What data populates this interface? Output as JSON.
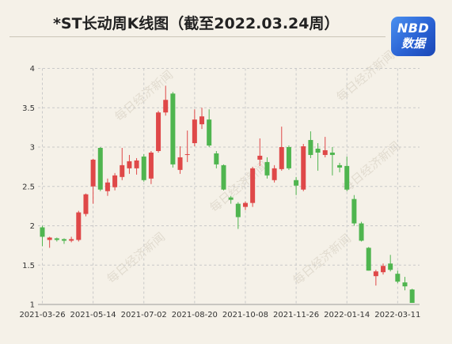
{
  "logo": {
    "line1": "NBD",
    "line2": "数据"
  },
  "watermark": "每日经济新闻",
  "colors": {
    "background": "#f5f1e8",
    "up": "#df4848",
    "down": "#4fb54f",
    "logo": "#2a62d4",
    "grid": "#c9c9c9"
  },
  "chart_data": {
    "type": "candlestick",
    "title": "*ST长动周K线图（截至2022.03.24周）",
    "ylim": [
      1,
      4
    ],
    "y_ticks": [
      1,
      1.5,
      2,
      2.5,
      3,
      3.5,
      4
    ],
    "x_ticks": [
      "2021-03-26",
      "2021-05-14",
      "2021-07-02",
      "2021-08-20",
      "2021-10-08",
      "2021-11-26",
      "2022-01-14",
      "2022-03-11"
    ],
    "grid": true,
    "x": [
      "2021-03-26",
      "2021-04-02",
      "2021-04-09",
      "2021-04-16",
      "2021-04-23",
      "2021-04-30",
      "2021-05-07",
      "2021-05-14",
      "2021-05-21",
      "2021-05-28",
      "2021-06-04",
      "2021-06-11",
      "2021-06-18",
      "2021-06-25",
      "2021-07-02",
      "2021-07-09",
      "2021-07-16",
      "2021-07-23",
      "2021-07-30",
      "2021-08-06",
      "2021-08-13",
      "2021-08-20",
      "2021-08-27",
      "2021-09-03",
      "2021-09-10",
      "2021-09-17",
      "2021-09-24",
      "2021-09-30",
      "2021-10-08",
      "2021-10-15",
      "2021-10-22",
      "2021-10-29",
      "2021-11-05",
      "2021-11-12",
      "2021-11-19",
      "2021-11-26",
      "2021-12-03",
      "2021-12-10",
      "2021-12-17",
      "2021-12-24",
      "2021-12-31",
      "2022-01-07",
      "2022-01-14",
      "2022-01-21",
      "2022-01-28",
      "2022-02-11",
      "2022-02-18",
      "2022-02-25",
      "2022-03-04",
      "2022-03-11",
      "2022-03-18",
      "2022-03-24"
    ],
    "open": [
      1.98,
      1.82,
      1.84,
      1.83,
      1.81,
      1.82,
      2.15,
      2.5,
      2.99,
      2.44,
      2.49,
      2.62,
      2.73,
      2.73,
      2.88,
      2.6,
      2.95,
      3.44,
      3.68,
      2.71,
      2.9,
      3.05,
      3.29,
      3.35,
      2.92,
      2.77,
      2.36,
      2.28,
      2.24,
      2.29,
      2.84,
      2.81,
      2.58,
      2.72,
      3.0,
      2.58,
      2.46,
      3.09,
      2.98,
      2.9,
      2.93,
      2.77,
      2.76,
      2.34,
      2.03,
      1.72,
      1.36,
      1.41,
      1.52,
      1.39,
      1.28,
      1.19
    ],
    "high": [
      2.0,
      1.86,
      1.85,
      1.84,
      1.86,
      2.19,
      2.41,
      2.85,
      3.0,
      2.6,
      2.67,
      2.99,
      2.9,
      2.86,
      2.91,
      2.95,
      3.46,
      3.78,
      3.7,
      3.01,
      3.21,
      3.48,
      3.5,
      3.48,
      2.95,
      2.78,
      2.38,
      2.3,
      2.31,
      2.75,
      3.11,
      2.87,
      2.77,
      3.26,
      3.02,
      2.62,
      3.04,
      3.2,
      3.05,
      3.13,
      3.0,
      2.8,
      2.88,
      2.39,
      2.05,
      1.73,
      1.44,
      1.52,
      1.63,
      1.43,
      1.35,
      1.2
    ],
    "low": [
      1.74,
      1.72,
      1.8,
      1.77,
      1.79,
      1.8,
      2.12,
      2.28,
      2.44,
      2.38,
      2.45,
      2.58,
      2.66,
      2.65,
      2.56,
      2.53,
      2.93,
      3.4,
      2.74,
      2.66,
      2.81,
      3.01,
      3.23,
      3.0,
      2.73,
      2.45,
      2.28,
      1.96,
      2.2,
      2.24,
      2.76,
      2.6,
      2.55,
      2.7,
      2.71,
      2.39,
      2.44,
      2.86,
      2.7,
      2.87,
      2.64,
      2.68,
      2.44,
      2.0,
      1.8,
      1.43,
      1.24,
      1.38,
      1.42,
      1.27,
      1.18,
      1.02
    ],
    "close": [
      1.86,
      1.85,
      1.82,
      1.81,
      1.83,
      2.17,
      2.4,
      2.84,
      2.46,
      2.55,
      2.64,
      2.77,
      2.82,
      2.83,
      2.58,
      2.93,
      3.44,
      3.6,
      2.78,
      2.87,
      2.91,
      3.35,
      3.39,
      3.02,
      2.78,
      2.46,
      2.33,
      2.11,
      2.29,
      2.73,
      2.89,
      2.64,
      2.73,
      3.0,
      2.73,
      2.51,
      3.01,
      2.9,
      2.93,
      2.96,
      2.9,
      2.74,
      2.46,
      2.03,
      1.81,
      1.43,
      1.42,
      1.49,
      1.44,
      1.29,
      1.23,
      1.02
    ]
  }
}
